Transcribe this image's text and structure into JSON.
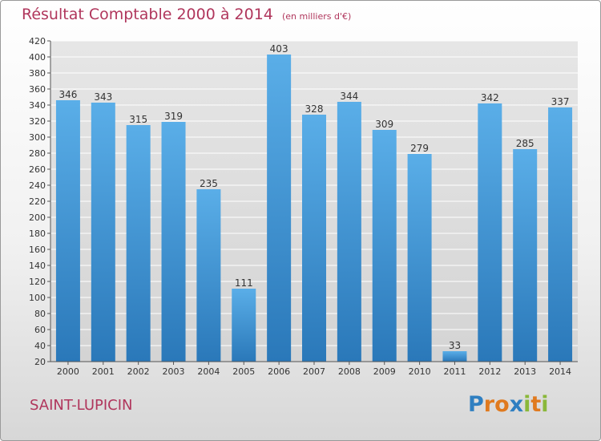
{
  "title": "Résultat Comptable 2000 à 2014",
  "subtitle": "(en milliers d'€)",
  "commune": "SAINT-LUPICIN",
  "logo": {
    "letters": [
      {
        "ch": "P",
        "color": "#2f7fc1"
      },
      {
        "ch": "r",
        "color": "#e07a1f"
      },
      {
        "ch": "o",
        "color": "#e07a1f"
      },
      {
        "ch": "x",
        "color": "#2f7fc1"
      },
      {
        "ch": "i",
        "color": "#8ab83a"
      },
      {
        "ch": "t",
        "color": "#e07a1f"
      },
      {
        "ch": "i",
        "color": "#8ab83a"
      }
    ]
  },
  "colors": {
    "bar_light": "#5aaee8",
    "bar_dark": "#2a78b9",
    "title": "#b0365c",
    "grid": "#ffffff",
    "axis_text": "#333333"
  },
  "chart_data": {
    "type": "bar",
    "categories": [
      "2000",
      "2001",
      "2002",
      "2003",
      "2004",
      "2005",
      "2006",
      "2007",
      "2008",
      "2009",
      "2010",
      "2011",
      "2012",
      "2013",
      "2014"
    ],
    "values": [
      346,
      343,
      315,
      319,
      235,
      111,
      403,
      328,
      344,
      309,
      279,
      33,
      342,
      285,
      337
    ],
    "ylim": [
      20,
      420
    ],
    "yticks": [
      20,
      40,
      60,
      80,
      100,
      120,
      140,
      160,
      180,
      200,
      220,
      240,
      260,
      280,
      300,
      320,
      340,
      360,
      380,
      400,
      420
    ],
    "grid": true
  }
}
